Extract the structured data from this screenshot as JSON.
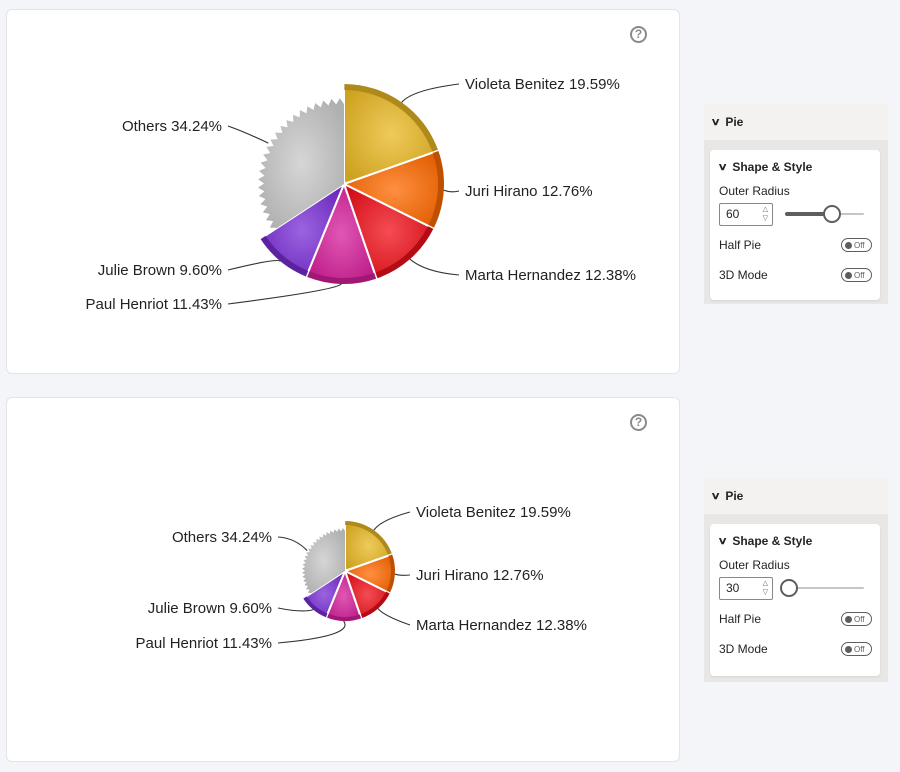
{
  "help_glyph": "?",
  "chart_data": [
    {
      "type": "pie",
      "outer_radius_setting": 60,
      "slices": [
        {
          "label": "Violeta Benitez",
          "value": 19.59,
          "display": "Violeta Benitez 19.59%",
          "color": "#e9b824"
        },
        {
          "label": "Juri Hirano",
          "value": 12.76,
          "display": "Juri Hirano 12.76%",
          "color": "#ff6a00"
        },
        {
          "label": "Marta Hernandez",
          "value": 12.38,
          "display": "Marta Hernandez 12.38%",
          "color": "#f0101a"
        },
        {
          "label": "Paul Henriot",
          "value": 11.43,
          "display": "Paul Henriot 11.43%",
          "color": "#d61f9a"
        },
        {
          "label": "Julie Brown",
          "value": 9.6,
          "display": "Julie Brown 9.60%",
          "color": "#7a2fd6"
        },
        {
          "label": "Others",
          "value": 34.24,
          "display": "Others 34.24%",
          "color": "#c8c8c8"
        }
      ]
    },
    {
      "type": "pie",
      "outer_radius_setting": 30,
      "slices": [
        {
          "label": "Violeta Benitez",
          "value": 19.59,
          "display": "Violeta Benitez 19.59%",
          "color": "#e9b824"
        },
        {
          "label": "Juri Hirano",
          "value": 12.76,
          "display": "Juri Hirano 12.76%",
          "color": "#ff6a00"
        },
        {
          "label": "Marta Hernandez",
          "value": 12.38,
          "display": "Marta Hernandez 12.38%",
          "color": "#f0101a"
        },
        {
          "label": "Paul Henriot",
          "value": 11.43,
          "display": "Paul Henriot 11.43%",
          "color": "#d61f9a"
        },
        {
          "label": "Julie Brown",
          "value": 9.6,
          "display": "Julie Brown 9.60%",
          "color": "#7a2fd6"
        },
        {
          "label": "Others",
          "value": 34.24,
          "display": "Others 34.24%",
          "color": "#c8c8c8"
        }
      ]
    }
  ],
  "panels": [
    {
      "title": "Pie",
      "section_title": "Shape & Style",
      "outer_radius_label": "Outer Radius",
      "outer_radius_value": "60",
      "slider_fraction": 0.6,
      "half_pie_label": "Half Pie",
      "half_pie_state": "Off",
      "mode_3d_label": "3D Mode",
      "mode_3d_state": "Off"
    },
    {
      "title": "Pie",
      "section_title": "Shape & Style",
      "outer_radius_label": "Outer Radius",
      "outer_radius_value": "30",
      "slider_fraction": 0.05,
      "half_pie_label": "Half Pie",
      "half_pie_state": "Off",
      "mode_3d_label": "3D Mode",
      "mode_3d_state": "Off"
    }
  ]
}
